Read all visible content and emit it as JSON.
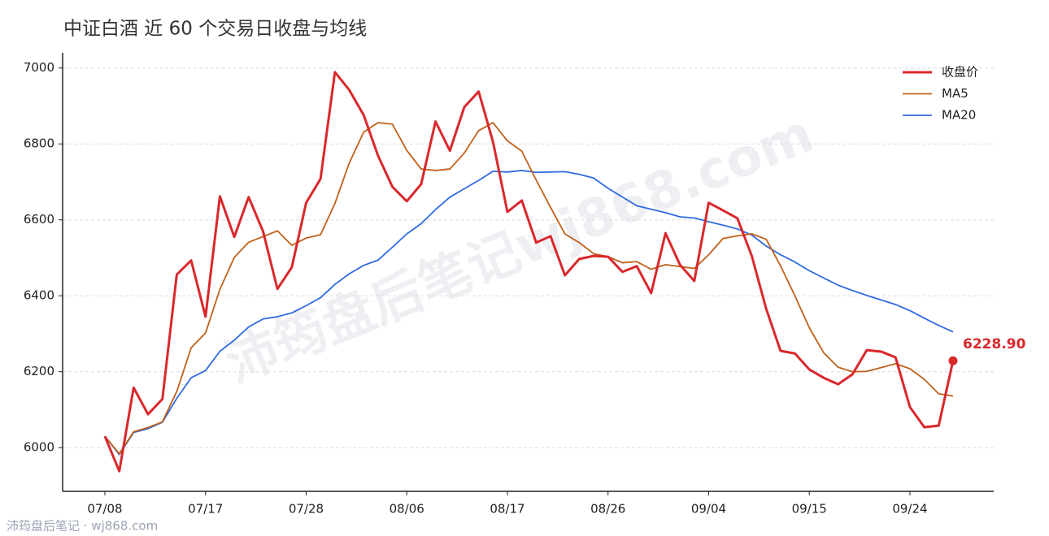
{
  "chart_data": {
    "type": "line",
    "title": "中证白酒 近 60 个交易日收盘与均线",
    "watermark": "沛筠盘后笔记wj868.com",
    "footer": "沛筠盘后笔记 · wj868.com",
    "categories": [
      "07/08",
      null,
      null,
      null,
      null,
      null,
      null,
      "07/17",
      null,
      null,
      null,
      null,
      null,
      null,
      "07/28",
      null,
      null,
      null,
      null,
      null,
      null,
      "08/06",
      null,
      null,
      null,
      null,
      null,
      null,
      "08/17",
      null,
      null,
      null,
      null,
      null,
      null,
      "08/26",
      null,
      null,
      null,
      null,
      null,
      null,
      "09/04",
      null,
      null,
      null,
      null,
      null,
      null,
      "09/15",
      null,
      null,
      null,
      null,
      null,
      null,
      "09/24",
      null,
      null,
      null
    ],
    "series": [
      {
        "name": "收盘价",
        "color": "#d9282c",
        "width": 3,
        "values": [
          6030,
          5938,
          6158,
          6088,
          6128,
          6456,
          6493,
          6345,
          6662,
          6555,
          6660,
          6570,
          6418,
          6475,
          6645,
          6708,
          6989,
          6942,
          6876,
          6769,
          6687,
          6649,
          6694,
          6859,
          6782,
          6897,
          6938,
          6805,
          6621,
          6651,
          6540,
          6557,
          6454,
          6497,
          6505,
          6503,
          6463,
          6478,
          6407,
          6565,
          6482,
          6439,
          6645,
          6625,
          6604,
          6505,
          6366,
          6255,
          6248,
          6206,
          6184,
          6167,
          6193,
          6257,
          6253,
          6238,
          6107,
          6054,
          6058,
          6228.9
        ],
        "value_labels": [
          null,
          null,
          null,
          null,
          null,
          null,
          null,
          null,
          null,
          null,
          null,
          null,
          null,
          null,
          null,
          null,
          null,
          null,
          null,
          null,
          null,
          null,
          null,
          null,
          null,
          null,
          null,
          null,
          null,
          null,
          null,
          null,
          null,
          null,
          null,
          null,
          null,
          null,
          null,
          null,
          null,
          null,
          null,
          null,
          null,
          null,
          null,
          null,
          null,
          null,
          null,
          null,
          null,
          null,
          null,
          null,
          null,
          null,
          null,
          "6228.90"
        ]
      },
      {
        "name": "MA5",
        "color": "#c0601a",
        "width": 1.8,
        "values": [
          6030,
          5984,
          6042,
          6053,
          6068,
          6148,
          6263,
          6302,
          6417,
          6501,
          6541,
          6556,
          6571,
          6533,
          6552,
          6561,
          6643,
          6750,
          6831,
          6856,
          6852,
          6783,
          6734,
          6730,
          6734,
          6776,
          6835,
          6856,
          6808,
          6781,
          6705,
          6633,
          6563,
          6540,
          6511,
          6503,
          6487,
          6490,
          6470,
          6482,
          6477,
          6472,
          6508,
          6551,
          6558,
          6563,
          6549,
          6479,
          6400,
          6316,
          6250,
          6212,
          6200,
          6201,
          6211,
          6221,
          6208,
          6180,
          6142,
          6136
        ]
      },
      {
        "name": "MA20",
        "color": "#2f6be0",
        "width": 1.8,
        "values": [
          6030,
          5982,
          6040,
          6050,
          6067,
          6130,
          6184,
          6203,
          6254,
          6283,
          6318,
          6339,
          6345,
          6355,
          6374,
          6395,
          6430,
          6458,
          6480,
          6494,
          6528,
          6563,
          6590,
          6627,
          6660,
          6682,
          6704,
          6728,
          6726,
          6730,
          6725,
          6726,
          6727,
          6720,
          6710,
          6683,
          6660,
          6637,
          6628,
          6619,
          6608,
          6605,
          6595,
          6586,
          6576,
          6560,
          6531,
          6508,
          6489,
          6466,
          6447,
          6428,
          6414,
          6401,
          6389,
          6377,
          6361,
          6341,
          6322,
          6305
        ]
      }
    ],
    "ylim": [
      5885,
      7040
    ],
    "yticks": [
      6000,
      6200,
      6400,
      6600,
      6800,
      7000
    ],
    "grid": true,
    "legend": "upper right"
  }
}
